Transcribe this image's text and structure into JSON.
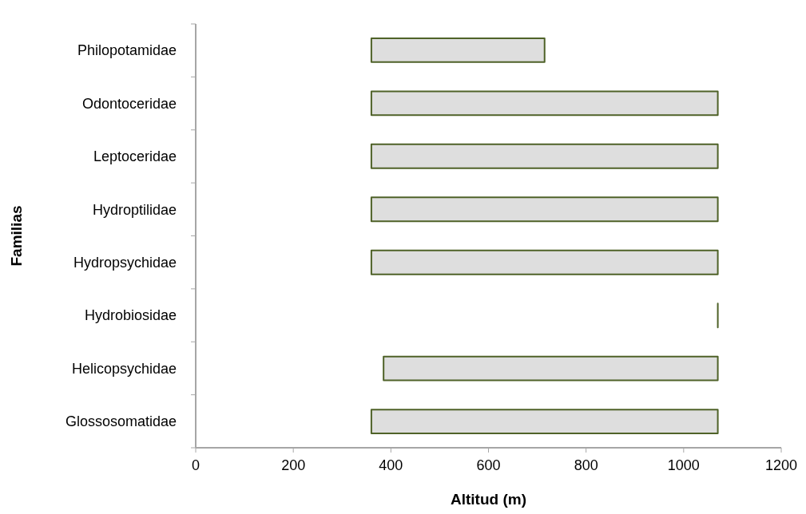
{
  "chart_data": {
    "type": "bar",
    "orientation": "horizontal",
    "xlabel": "Altitud (m)",
    "ylabel": "Familias",
    "categories": [
      "Philopotamidae",
      "Odontoceridae",
      "Leptoceridae",
      "Hydroptilidae",
      "Hydropsychidae",
      "Hydrobiosidae",
      "Helicopsychidae",
      "Glossosomatidae"
    ],
    "base": [
      360,
      360,
      360,
      360,
      360,
      1070,
      385,
      360
    ],
    "values": [
      355,
      710,
      710,
      710,
      710,
      0,
      685,
      710
    ],
    "colors": [
      "#dedede",
      "#dedede",
      "#dedede",
      "#dedede",
      "#dedede",
      "#4f6228",
      "#dedede",
      "#dedede"
    ],
    "xlim": [
      0,
      1200
    ],
    "xticks": [
      0,
      200,
      400,
      600,
      800,
      1000,
      1200
    ],
    "grid": false
  }
}
